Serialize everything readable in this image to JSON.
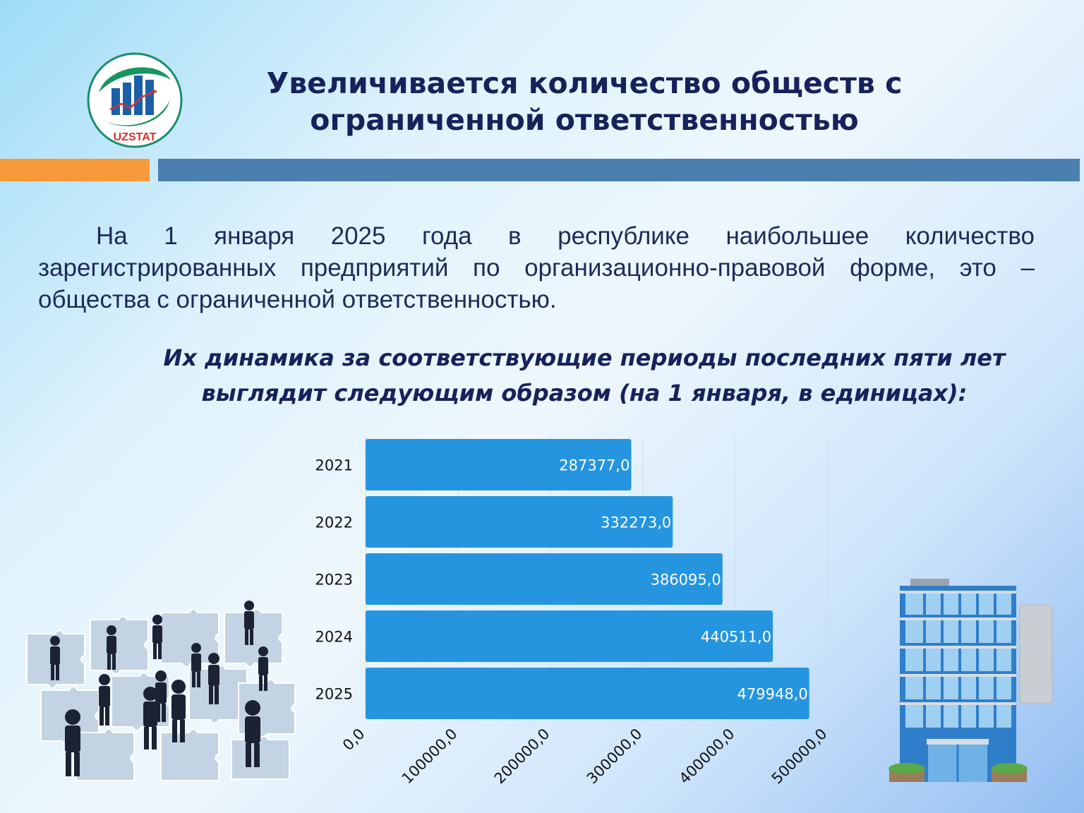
{
  "header": {
    "logo_text": "UZSTAT",
    "title": "Увеличивается количество обществ с ограниченной ответственностью"
  },
  "intro_text": "На 1 января 2025 года в республике наибольшее количество зарегистрированных предприятий по организационно-правовой форме, это – общества с ограниченной ответственностью.",
  "subtitle": "Их динамика за соответствующие периоды последних пяти лет выглядит следующим образом (на 1 января, в единицах):",
  "colors": {
    "title": "#17215b",
    "accent_orange": "#f79a3a",
    "accent_blue": "#4a7fb0",
    "bar": "#2595e0",
    "grid": "#d4dbe3"
  },
  "icons": [
    "uzstat-logo",
    "business-people-puzzle-illustration",
    "office-building-illustration"
  ],
  "chart_data": {
    "type": "bar",
    "orientation": "horizontal",
    "categories": [
      "2021",
      "2022",
      "2023",
      "2024",
      "2025"
    ],
    "values": [
      287377.0,
      332273.0,
      386095.0,
      440511.0,
      479948.0
    ],
    "value_labels": [
      "287377,0",
      "332273,0",
      "386095,0",
      "440511,0",
      "479948,0"
    ],
    "x_ticks": [
      "0,0",
      "100000,0",
      "200000,0",
      "300000,0",
      "400000,0",
      "500000,0"
    ],
    "xlim": [
      0,
      500000
    ],
    "grid": true,
    "legend": "none"
  }
}
